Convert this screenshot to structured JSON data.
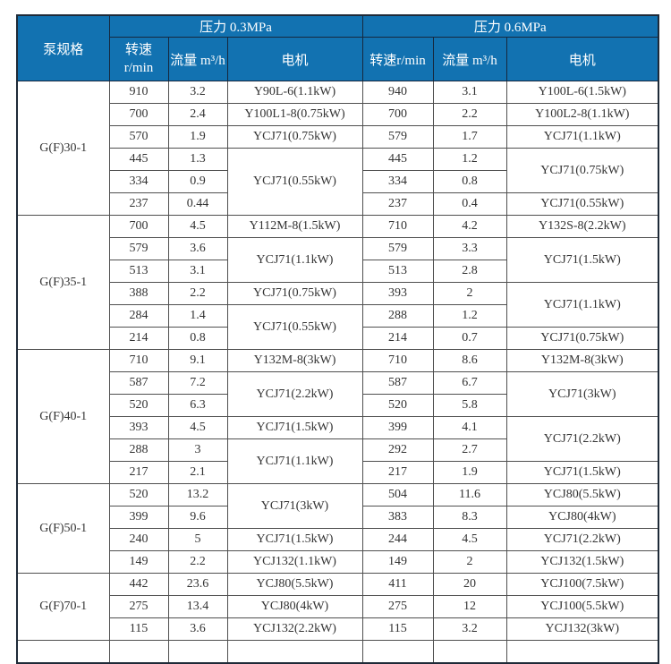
{
  "colors": {
    "header_bg": "#1272b1",
    "header_text": "#ffffff",
    "header_grid": "#16283e",
    "data_grid": "#4f4f4f",
    "data_text": "#333333",
    "page_bg": "#ffffff"
  },
  "table": {
    "header": {
      "pump_spec": "泵规格",
      "pressure_left": "压力 0.3MPa",
      "pressure_right": "压力 0.6MPa",
      "speed_left_line1": "转速",
      "speed_left_line2": "r/min",
      "flow_left": "流量 m³/h",
      "motor_left": "电机",
      "speed_right": "转速r/min",
      "flow_right": "流量 m³/h",
      "motor_right": "电机"
    },
    "groups": [
      {
        "spec": "G(F)30-1",
        "rows_left": [
          [
            "910",
            "3.2"
          ],
          [
            "700",
            "2.4"
          ],
          [
            "570",
            "1.9"
          ],
          [
            "445",
            "1.3"
          ],
          [
            "334",
            "0.9"
          ],
          [
            "237",
            "0.44"
          ]
        ],
        "motors_left": [
          [
            "Y90L-6(1.1kW)",
            1
          ],
          [
            "Y100L1-8(0.75kW)",
            1
          ],
          [
            "YCJ71(0.75kW)",
            1
          ],
          [
            "YCJ71(0.55kW)",
            3
          ]
        ],
        "rows_right": [
          [
            "940",
            "3.1"
          ],
          [
            "700",
            "2.2"
          ],
          [
            "579",
            "1.7"
          ],
          [
            "445",
            "1.2"
          ],
          [
            "334",
            "0.8"
          ],
          [
            "237",
            "0.4"
          ]
        ],
        "motors_right": [
          [
            "Y100L-6(1.5kW)",
            1
          ],
          [
            "Y100L2-8(1.1kW)",
            1
          ],
          [
            "YCJ71(1.1kW)",
            1
          ],
          [
            "YCJ71(0.75kW)",
            2
          ],
          [
            "YCJ71(0.55kW)",
            1
          ]
        ]
      },
      {
        "spec": "G(F)35-1",
        "rows_left": [
          [
            "700",
            "4.5"
          ],
          [
            "579",
            "3.6"
          ],
          [
            "513",
            "3.1"
          ],
          [
            "388",
            "2.2"
          ],
          [
            "284",
            "1.4"
          ],
          [
            "214",
            "0.8"
          ]
        ],
        "motors_left": [
          [
            "Y112M-8(1.5kW)",
            1
          ],
          [
            "YCJ71(1.1kW)",
            2
          ],
          [
            "YCJ71(0.75kW)",
            1
          ],
          [
            "YCJ71(0.55kW)",
            2
          ]
        ],
        "rows_right": [
          [
            "710",
            "4.2"
          ],
          [
            "579",
            "3.3"
          ],
          [
            "513",
            "2.8"
          ],
          [
            "393",
            "2"
          ],
          [
            "288",
            "1.2"
          ],
          [
            "214",
            "0.7"
          ]
        ],
        "motors_right": [
          [
            "Y132S-8(2.2kW)",
            1
          ],
          [
            "YCJ71(1.5kW)",
            2
          ],
          [
            "YCJ71(1.1kW)",
            2
          ],
          [
            "YCJ71(0.75kW)",
            1
          ]
        ]
      },
      {
        "spec": "G(F)40-1",
        "rows_left": [
          [
            "710",
            "9.1"
          ],
          [
            "587",
            "7.2"
          ],
          [
            "520",
            "6.3"
          ],
          [
            "393",
            "4.5"
          ],
          [
            "288",
            "3"
          ],
          [
            "217",
            "2.1"
          ]
        ],
        "motors_left": [
          [
            "Y132M-8(3kW)",
            1
          ],
          [
            "YCJ71(2.2kW)",
            2
          ],
          [
            "YCJ71(1.5kW)",
            1
          ],
          [
            "YCJ71(1.1kW)",
            2
          ]
        ],
        "rows_right": [
          [
            "710",
            "8.6"
          ],
          [
            "587",
            "6.7"
          ],
          [
            "520",
            "5.8"
          ],
          [
            "399",
            "4.1"
          ],
          [
            "292",
            "2.7"
          ],
          [
            "217",
            "1.9"
          ]
        ],
        "motors_right": [
          [
            "Y132M-8(3kW)",
            1
          ],
          [
            "YCJ71(3kW)",
            2
          ],
          [
            "YCJ71(2.2kW)",
            2
          ],
          [
            "YCJ71(1.5kW)",
            1
          ]
        ]
      },
      {
        "spec": "G(F)50-1",
        "rows_left": [
          [
            "520",
            "13.2"
          ],
          [
            "399",
            "9.6"
          ],
          [
            "240",
            "5"
          ],
          [
            "149",
            "2.2"
          ]
        ],
        "motors_left": [
          [
            "YCJ71(3kW)",
            2
          ],
          [
            "YCJ71(1.5kW)",
            1
          ],
          [
            "YCJ132(1.1kW)",
            1
          ]
        ],
        "rows_right": [
          [
            "504",
            "11.6"
          ],
          [
            "383",
            "8.3"
          ],
          [
            "244",
            "4.5"
          ],
          [
            "149",
            "2"
          ]
        ],
        "motors_right": [
          [
            "YCJ80(5.5kW)",
            1
          ],
          [
            "YCJ80(4kW)",
            1
          ],
          [
            "YCJ71(2.2kW)",
            1
          ],
          [
            "YCJ132(1.5kW)",
            1
          ]
        ]
      },
      {
        "spec": "G(F)70-1",
        "rows_left": [
          [
            "442",
            "23.6"
          ],
          [
            "275",
            "13.4"
          ],
          [
            "115",
            "3.6"
          ]
        ],
        "motors_left": [
          [
            "YCJ80(5.5kW)",
            1
          ],
          [
            "YCJ80(4kW)",
            1
          ],
          [
            "YCJ132(2.2kW)",
            1
          ]
        ],
        "rows_right": [
          [
            "411",
            "20"
          ],
          [
            "275",
            "12"
          ],
          [
            "115",
            "3.2"
          ]
        ],
        "motors_right": [
          [
            "YCJ100(7.5kW)",
            1
          ],
          [
            "YCJ100(5.5kW)",
            1
          ],
          [
            "YCJ132(3kW)",
            1
          ]
        ]
      }
    ]
  }
}
